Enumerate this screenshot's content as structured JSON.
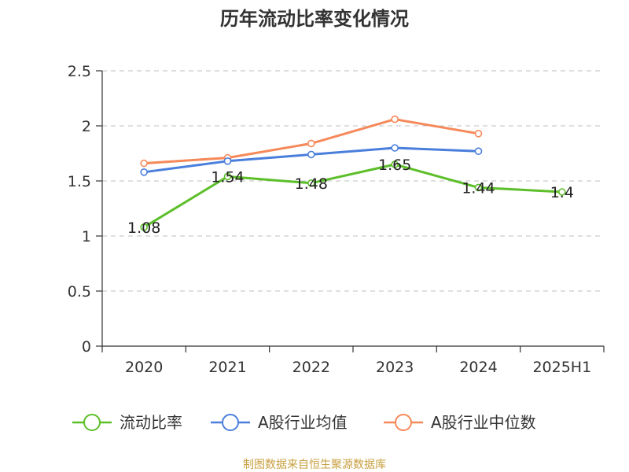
{
  "chart_data": {
    "type": "line",
    "title": "历年流动比率变化情况",
    "categories": [
      "2020",
      "2021",
      "2022",
      "2023",
      "2024",
      "2025H1"
    ],
    "ylim": [
      0,
      2.5
    ],
    "yticks": [
      "0",
      "0.5",
      "1",
      "1.5",
      "2",
      "2.5"
    ],
    "ytick_values": [
      0,
      0.5,
      1,
      1.5,
      2,
      2.5
    ],
    "grid": true,
    "legend_position": "bottom",
    "series": [
      {
        "name": "流动比率",
        "color": "#5cbf2a",
        "values": [
          1.08,
          1.54,
          1.48,
          1.65,
          1.44,
          1.4
        ],
        "labels": [
          "1.08",
          "1.54",
          "1.48",
          "1.65",
          "1.44",
          "1.4"
        ]
      },
      {
        "name": "A股行业均值",
        "color": "#4a7fdc",
        "values": [
          1.58,
          1.68,
          1.74,
          1.8,
          1.77,
          null
        ]
      },
      {
        "name": "A股行业中位数",
        "color": "#f5895a",
        "values": [
          1.66,
          1.71,
          1.84,
          2.06,
          1.93,
          null
        ]
      }
    ]
  },
  "source": "制图数据来自恒生聚源数据库"
}
